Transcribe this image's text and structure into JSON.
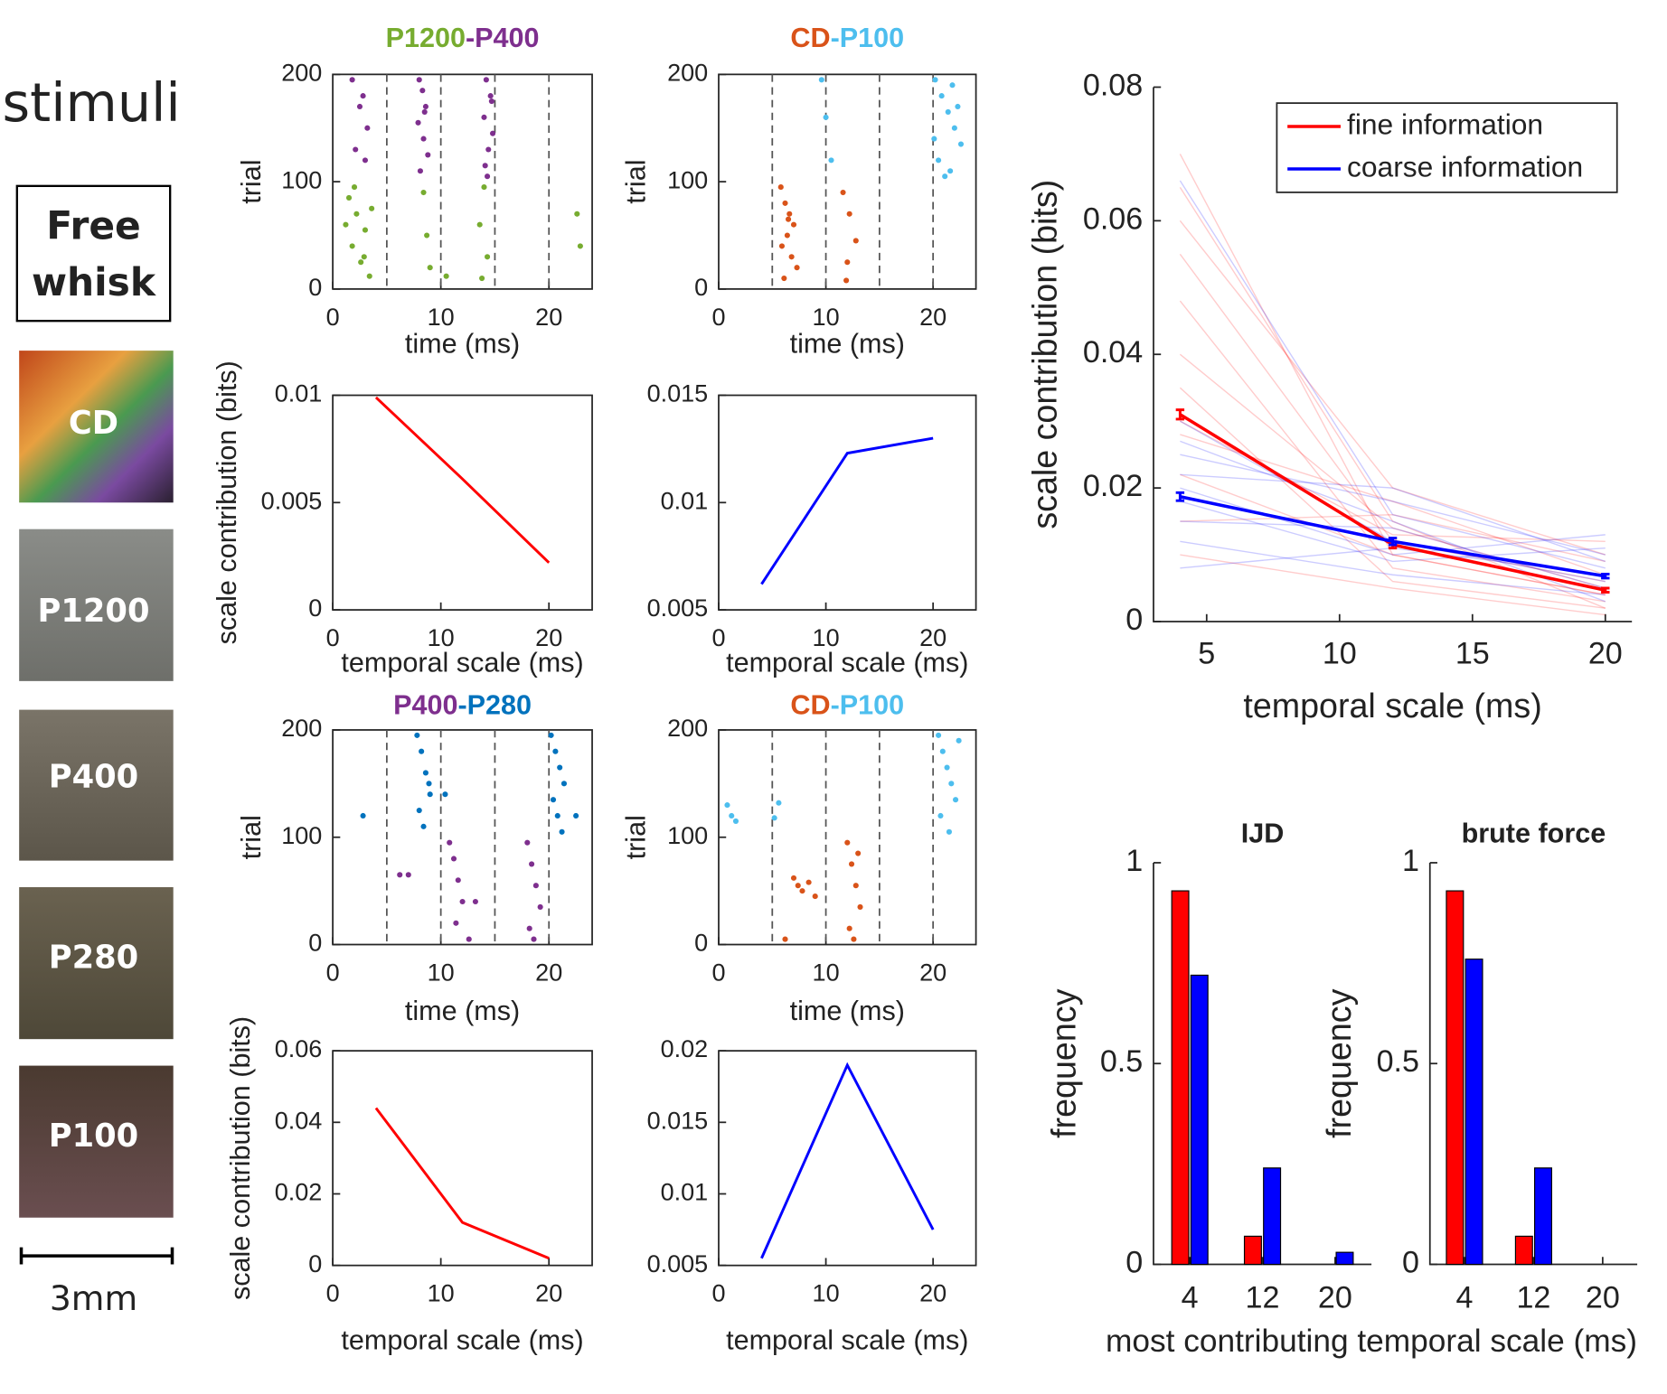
{
  "stimuli": {
    "heading": "stimuli",
    "free_whisk": [
      "Free",
      "whisk"
    ],
    "samples": [
      "CD",
      "P1200",
      "P400",
      "P280",
      "P100"
    ],
    "scale_bar": "3mm"
  },
  "bar_xlabel": "most contributing temporal scale (ms)",
  "chart_data": [
    {
      "type": "raster",
      "title": [
        {
          "text": "P1200",
          "color": "#77ac30"
        },
        {
          "text": "-P400",
          "color": "#7e2f8e"
        }
      ],
      "xlabel": "time (ms)",
      "ylabel": "trial",
      "xlim": [
        0,
        24
      ],
      "ylim": [
        0,
        200
      ],
      "xticks": [
        0,
        10,
        20
      ],
      "yticks": [
        0,
        100,
        200
      ],
      "box": true,
      "dashed": [
        5,
        10,
        15,
        20
      ],
      "series": [
        {
          "color": "#77ac30",
          "x": [
            1.5,
            2.2,
            3.0,
            1.8,
            2.6,
            3.4,
            1.2,
            2.0,
            2.9,
            3.6,
            8.4,
            9.0,
            8.7,
            14.0,
            13.6,
            14.3,
            13.8,
            22.6,
            22.9,
            10.5
          ],
          "values": [
            85,
            70,
            55,
            40,
            25,
            12,
            60,
            95,
            30,
            75,
            90,
            20,
            50,
            95,
            60,
            30,
            10,
            70,
            40,
            12
          ]
        },
        {
          "color": "#7e2f8e",
          "x": [
            1.8,
            2.5,
            3.2,
            2.1,
            3.0,
            2.8,
            8.0,
            8.3,
            8.6,
            7.9,
            8.4,
            8.8,
            8.1,
            8.5,
            14.2,
            14.6,
            14.0,
            14.8,
            14.4,
            14.1,
            14.7,
            14.3
          ],
          "values": [
            195,
            170,
            150,
            130,
            120,
            180,
            195,
            185,
            170,
            155,
            140,
            125,
            110,
            165,
            195,
            180,
            160,
            145,
            130,
            115,
            175,
            105
          ]
        }
      ]
    },
    {
      "type": "raster",
      "title": [
        {
          "text": "CD",
          "color": "#d95319"
        },
        {
          "text": "-P100",
          "color": "#4dbeee"
        }
      ],
      "xlabel": "time (ms)",
      "ylabel": "trial",
      "xlim": [
        0,
        24
      ],
      "ylim": [
        0,
        200
      ],
      "xticks": [
        0,
        10,
        20
      ],
      "yticks": [
        0,
        100,
        200
      ],
      "box": true,
      "dashed": [
        5,
        10,
        15,
        20
      ],
      "series": [
        {
          "color": "#d95319",
          "x": [
            5.8,
            6.2,
            6.6,
            7.0,
            6.4,
            5.9,
            6.8,
            7.3,
            6.1,
            6.5,
            11.6,
            12.2,
            12.8,
            12.0,
            11.9
          ],
          "values": [
            95,
            80,
            70,
            60,
            50,
            40,
            30,
            20,
            10,
            65,
            90,
            70,
            45,
            25,
            8
          ]
        },
        {
          "color": "#4dbeee",
          "x": [
            9.6,
            10.0,
            10.5,
            20.2,
            20.8,
            21.4,
            22.0,
            22.6,
            20.5,
            21.1,
            21.8,
            22.3,
            20.1,
            21.6
          ],
          "values": [
            195,
            160,
            120,
            195,
            180,
            165,
            150,
            135,
            120,
            105,
            190,
            170,
            140,
            110
          ]
        }
      ]
    },
    {
      "type": "line",
      "xlabel": "temporal scale (ms)",
      "ylabel": "scale contribution (bits)",
      "xlim": [
        0,
        24
      ],
      "ylim": [
        0,
        0.01
      ],
      "xticks": [
        0,
        10,
        20
      ],
      "yticks": [
        0,
        0.005,
        0.01
      ],
      "box": true,
      "x": [
        4,
        12,
        20
      ],
      "series": [
        {
          "color": "#ff0000",
          "values": [
            0.0099,
            0.0061,
            0.0022
          ]
        }
      ]
    },
    {
      "type": "line",
      "xlabel": "temporal scale (ms)",
      "xlim": [
        0,
        24
      ],
      "ylim": [
        0.005,
        0.015
      ],
      "xticks": [
        0,
        10,
        20
      ],
      "yticks": [
        0.005,
        0.01,
        0.015
      ],
      "box": true,
      "x": [
        4,
        12,
        20
      ],
      "series": [
        {
          "color": "#0000ff",
          "values": [
            0.0062,
            0.0123,
            0.013
          ]
        }
      ]
    },
    {
      "type": "raster",
      "title": [
        {
          "text": "P400",
          "color": "#7e2f8e"
        },
        {
          "text": "-P280",
          "color": "#0072bd"
        }
      ],
      "xlabel": "time (ms)",
      "ylabel": "trial",
      "xlim": [
        0,
        24
      ],
      "ylim": [
        0,
        200
      ],
      "xticks": [
        0,
        10,
        20
      ],
      "yticks": [
        0,
        100,
        200
      ],
      "box": true,
      "dashed": [
        5,
        10,
        15,
        20
      ],
      "series": [
        {
          "color": "#0072bd",
          "x": [
            2.8,
            7.8,
            8.2,
            8.6,
            9.0,
            8.0,
            8.4,
            8.9,
            10.4,
            20.2,
            20.6,
            21.0,
            21.4,
            20.4,
            20.8,
            21.2,
            22.5
          ],
          "values": [
            120,
            195,
            180,
            160,
            140,
            125,
            110,
            150,
            140,
            195,
            180,
            165,
            150,
            135,
            120,
            105,
            120
          ]
        },
        {
          "color": "#7e2f8e",
          "x": [
            6.2,
            7.0,
            10.8,
            11.2,
            11.6,
            12.0,
            11.4,
            12.6,
            18.0,
            18.4,
            18.8,
            19.2,
            18.2,
            18.6,
            13.2
          ],
          "values": [
            65,
            65,
            95,
            80,
            60,
            40,
            20,
            5,
            95,
            75,
            55,
            35,
            15,
            5,
            40
          ]
        }
      ]
    },
    {
      "type": "raster",
      "title": [
        {
          "text": "CD",
          "color": "#d95319"
        },
        {
          "text": "-P100",
          "color": "#4dbeee"
        }
      ],
      "xlabel": "time (ms)",
      "ylabel": "trial",
      "xlim": [
        0,
        24
      ],
      "ylim": [
        0,
        200
      ],
      "xticks": [
        0,
        10,
        20
      ],
      "yticks": [
        0,
        100,
        200
      ],
      "box": true,
      "dashed": [
        5,
        10,
        15,
        20
      ],
      "series": [
        {
          "color": "#4dbeee",
          "x": [
            0.8,
            1.2,
            1.6,
            5.2,
            5.6,
            20.5,
            20.9,
            21.3,
            21.7,
            22.1,
            20.7,
            21.5,
            22.4
          ],
          "values": [
            130,
            120,
            115,
            118,
            132,
            195,
            180,
            165,
            150,
            135,
            120,
            105,
            190
          ]
        },
        {
          "color": "#d95319",
          "x": [
            7.0,
            7.4,
            7.8,
            8.4,
            9.0,
            12.0,
            12.4,
            12.8,
            13.2,
            12.2,
            12.6,
            13.0,
            6.2
          ],
          "values": [
            62,
            55,
            50,
            58,
            45,
            95,
            75,
            55,
            35,
            15,
            5,
            85,
            5
          ]
        }
      ]
    },
    {
      "type": "line",
      "xlabel": "temporal scale (ms)",
      "ylabel": "scale contribution (bits)",
      "xlim": [
        0,
        24
      ],
      "ylim": [
        0,
        0.06
      ],
      "xticks": [
        0,
        10,
        20
      ],
      "yticks": [
        0,
        0.02,
        0.04,
        0.06
      ],
      "box": true,
      "x": [
        4,
        12,
        20
      ],
      "series": [
        {
          "color": "#ff0000",
          "values": [
            0.044,
            0.012,
            0.002
          ]
        }
      ]
    },
    {
      "type": "line",
      "xlabel": "temporal scale (ms)",
      "xlim": [
        0,
        24
      ],
      "ylim": [
        0.005,
        0.02
      ],
      "xticks": [
        0,
        10,
        20
      ],
      "yticks": [
        0.005,
        0.01,
        0.015,
        0.02
      ],
      "box": true,
      "x": [
        4,
        12,
        20
      ],
      "series": [
        {
          "color": "#0000ff",
          "values": [
            0.0055,
            0.019,
            0.0075
          ]
        }
      ]
    },
    {
      "type": "summary",
      "xlabel": "temporal scale (ms)",
      "ylabel": "scale contribution (bits)",
      "xlim": [
        3,
        21
      ],
      "ylim": [
        0,
        0.08
      ],
      "xticks": [
        5,
        10,
        15,
        20
      ],
      "yticks": [
        0,
        0.02,
        0.04,
        0.06,
        0.08
      ],
      "box": false,
      "legend": "top-right",
      "x": [
        4,
        12,
        20
      ],
      "series": [
        {
          "name": "fine information",
          "color": "#ff0000",
          "values": [
            0.031,
            0.0115,
            0.0047
          ],
          "errors": [
            0.0007,
            0.0005,
            0.0003
          ],
          "individual": [
            [
              0.07,
              0.01,
              0.004
            ],
            [
              0.065,
              0.015,
              0.002
            ],
            [
              0.055,
              0.012,
              0.006
            ],
            [
              0.048,
              0.008,
              0.003
            ],
            [
              0.04,
              0.014,
              0.005
            ],
            [
              0.035,
              0.006,
              0.002
            ],
            [
              0.028,
              0.018,
              0.007
            ],
            [
              0.022,
              0.01,
              0.004
            ],
            [
              0.015,
              0.016,
              0.009
            ],
            [
              0.01,
              0.005,
              0.001
            ],
            [
              0.06,
              0.02,
              0.01
            ],
            [
              0.03,
              0.013,
              0.012
            ]
          ]
        },
        {
          "name": "coarse information",
          "color": "#0000ff",
          "values": [
            0.0187,
            0.012,
            0.0068
          ],
          "errors": [
            0.0006,
            0.0005,
            0.0003
          ],
          "individual": [
            [
              0.066,
              0.016,
              0.008
            ],
            [
              0.03,
              0.012,
              0.006
            ],
            [
              0.025,
              0.018,
              0.01
            ],
            [
              0.02,
              0.01,
              0.013
            ],
            [
              0.015,
              0.014,
              0.005
            ],
            [
              0.012,
              0.007,
              0.004
            ],
            [
              0.022,
              0.02,
              0.009
            ],
            [
              0.008,
              0.011,
              0.007
            ],
            [
              0.018,
              0.009,
              0.011
            ],
            [
              0.027,
              0.015,
              0.003
            ]
          ]
        }
      ]
    },
    {
      "type": "bar",
      "title": "IJD",
      "ylabel": "frequency",
      "categories": [
        "4",
        "12",
        "20"
      ],
      "ylim": [
        0,
        1
      ],
      "yticks": [
        0,
        0.5,
        1
      ],
      "box": false,
      "series": [
        {
          "color": "#ff0000",
          "values": [
            0.93,
            0.07,
            0
          ]
        },
        {
          "color": "#0000ff",
          "values": [
            0.72,
            0.24,
            0.03
          ]
        }
      ]
    },
    {
      "type": "bar",
      "title": "brute force",
      "ylabel": "frequency",
      "categories": [
        "4",
        "12",
        "20"
      ],
      "ylim": [
        0,
        1
      ],
      "yticks": [
        0,
        0.5,
        1
      ],
      "box": false,
      "series": [
        {
          "color": "#ff0000",
          "values": [
            0.93,
            0.07,
            0
          ]
        },
        {
          "color": "#0000ff",
          "values": [
            0.76,
            0.24,
            0
          ]
        }
      ]
    }
  ]
}
